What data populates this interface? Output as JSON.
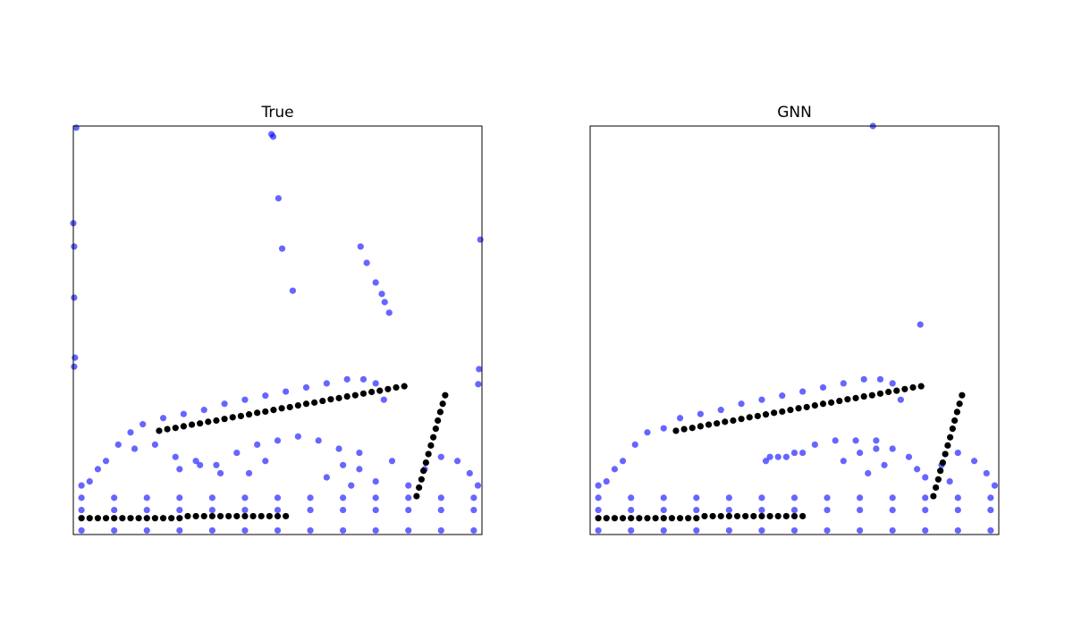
{
  "chart_data": [
    {
      "type": "scatter",
      "title": "True",
      "xlim": [
        0,
        1
      ],
      "ylim": [
        0,
        1
      ],
      "series": [
        {
          "color": "#0000ff",
          "x": [
            0.007,
            0.485,
            0.489,
            0.502,
            0.511,
            0.537,
            0.703,
            0.718,
            0.74,
            0.755,
            0.762,
            0.773,
            0,
            0.002,
            0.002,
            0.004,
            0.002,
            0.996,
            0.993,
            0.991,
            0.17,
            0.22,
            0.27,
            0.32,
            0.37,
            0.42,
            0.47,
            0.52,
            0.57,
            0.62,
            0.67,
            0.71,
            0.74,
            0.76,
            0.14,
            0.11,
            0.08,
            0.06,
            0.04,
            0.02,
            0.15,
            0.2,
            0.25,
            0.3,
            0.35,
            0.4,
            0.45,
            0.5,
            0.55,
            0.6,
            0.65,
            0.7,
            0.26,
            0.31,
            0.36,
            0.43,
            0.47,
            0.62,
            0.66,
            0.7,
            0.74,
            0.78,
            0.86,
            0.9,
            0.94,
            0.97,
            0.99,
            0.82,
            0.68,
            0.02,
            0.1,
            0.18,
            0.26,
            0.34,
            0.42,
            0.5,
            0.58,
            0.66,
            0.74,
            0.82,
            0.9,
            0.98,
            0.02,
            0.1,
            0.18,
            0.26,
            0.34,
            0.42,
            0.5,
            0.58,
            0.66,
            0.74,
            0.82,
            0.9,
            0.98,
            0.02,
            0.1,
            0.18,
            0.26,
            0.34,
            0.42,
            0.5,
            0.58,
            0.66,
            0.74,
            0.82,
            0.9,
            0.98
          ],
          "y": [
            0.996,
            0.98,
            0.974,
            0.823,
            0.7,
            0.597,
            0.705,
            0.665,
            0.617,
            0.589,
            0.569,
            0.543,
            0.762,
            0.705,
            0.58,
            0.433,
            0.411,
            0.722,
            0.405,
            0.368,
            0.27,
            0.285,
            0.295,
            0.305,
            0.32,
            0.33,
            0.34,
            0.35,
            0.36,
            0.37,
            0.38,
            0.38,
            0.37,
            0.33,
            0.25,
            0.22,
            0.18,
            0.16,
            0.13,
            0.12,
            0.21,
            0.22,
            0.19,
            0.18,
            0.17,
            0.2,
            0.22,
            0.23,
            0.24,
            0.23,
            0.21,
            0.2,
            0.16,
            0.17,
            0.15,
            0.15,
            0.18,
            0.14,
            0.17,
            0.16,
            0.13,
            0.18,
            0.16,
            0.19,
            0.18,
            0.15,
            0.12,
            0.12,
            0.12,
            0.01,
            0.01,
            0.01,
            0.01,
            0.01,
            0.01,
            0.01,
            0.01,
            0.01,
            0.01,
            0.01,
            0.01,
            0.01,
            0.06,
            0.06,
            0.06,
            0.06,
            0.06,
            0.06,
            0.06,
            0.06,
            0.06,
            0.06,
            0.06,
            0.06,
            0.06,
            0.09,
            0.09,
            0.09,
            0.09,
            0.09,
            0.09,
            0.09,
            0.09,
            0.09,
            0.09,
            0.09,
            0.09,
            0.09
          ]
        },
        {
          "color": "#000000",
          "x": [
            0.02,
            0.04,
            0.06,
            0.08,
            0.1,
            0.12,
            0.14,
            0.16,
            0.18,
            0.2,
            0.22,
            0.24,
            0.26,
            0.28,
            0.3,
            0.32,
            0.34,
            0.36,
            0.38,
            0.4,
            0.42,
            0.44,
            0.46,
            0.48,
            0.5,
            0.52,
            0.21,
            0.23,
            0.25,
            0.27,
            0.29,
            0.31,
            0.33,
            0.35,
            0.37,
            0.39,
            0.41,
            0.43,
            0.45,
            0.47,
            0.49,
            0.51,
            0.53,
            0.55,
            0.57,
            0.59,
            0.61,
            0.63,
            0.65,
            0.67,
            0.69,
            0.71,
            0.73,
            0.75,
            0.77,
            0.79,
            0.81,
            0.84,
            0.846,
            0.852,
            0.857,
            0.863,
            0.869,
            0.875,
            0.881,
            0.887,
            0.892,
            0.898,
            0.904,
            0.91
          ],
          "y": [
            0.04,
            0.04,
            0.04,
            0.04,
            0.04,
            0.04,
            0.04,
            0.04,
            0.04,
            0.04,
            0.04,
            0.04,
            0.04,
            0.045,
            0.045,
            0.045,
            0.045,
            0.045,
            0.045,
            0.045,
            0.045,
            0.045,
            0.045,
            0.045,
            0.045,
            0.045,
            0.254,
            0.258,
            0.261,
            0.265,
            0.269,
            0.272,
            0.276,
            0.279,
            0.283,
            0.287,
            0.29,
            0.294,
            0.298,
            0.301,
            0.305,
            0.309,
            0.312,
            0.316,
            0.32,
            0.323,
            0.327,
            0.331,
            0.334,
            0.338,
            0.341,
            0.345,
            0.349,
            0.352,
            0.356,
            0.36,
            0.363,
            0.094,
            0.115,
            0.135,
            0.156,
            0.176,
            0.197,
            0.218,
            0.238,
            0.259,
            0.279,
            0.3,
            0.32,
            0.341
          ]
        }
      ]
    },
    {
      "type": "scatter",
      "title": "GNN",
      "xlim": [
        0,
        1
      ],
      "ylim": [
        0,
        1
      ],
      "series": [
        {
          "color": "#0000ff",
          "x": [
            0.692,
            0.808,
            0.18,
            0.22,
            0.27,
            0.32,
            0.37,
            0.42,
            0.47,
            0.52,
            0.57,
            0.62,
            0.67,
            0.71,
            0.74,
            0.76,
            0.14,
            0.11,
            0.08,
            0.06,
            0.04,
            0.02,
            0.43,
            0.46,
            0.5,
            0.55,
            0.6,
            0.65,
            0.7,
            0.44,
            0.48,
            0.52,
            0.62,
            0.66,
            0.7,
            0.74,
            0.78,
            0.86,
            0.9,
            0.94,
            0.97,
            0.99,
            0.82,
            0.68,
            0.72,
            0.8,
            0.88,
            0.02,
            0.1,
            0.18,
            0.26,
            0.34,
            0.42,
            0.5,
            0.58,
            0.66,
            0.74,
            0.82,
            0.9,
            0.98,
            0.02,
            0.1,
            0.18,
            0.26,
            0.34,
            0.42,
            0.5,
            0.58,
            0.66,
            0.74,
            0.82,
            0.9,
            0.98,
            0.02,
            0.1,
            0.18,
            0.26,
            0.34,
            0.42,
            0.5,
            0.58,
            0.66,
            0.74,
            0.82,
            0.9,
            0.98
          ],
          "y": [
            1.0,
            0.514,
            0.26,
            0.285,
            0.295,
            0.305,
            0.32,
            0.33,
            0.34,
            0.35,
            0.36,
            0.37,
            0.38,
            0.38,
            0.37,
            0.33,
            0.25,
            0.22,
            0.18,
            0.16,
            0.13,
            0.12,
            0.18,
            0.19,
            0.2,
            0.22,
            0.23,
            0.23,
            0.21,
            0.19,
            0.19,
            0.2,
            0.18,
            0.2,
            0.23,
            0.21,
            0.19,
            0.17,
            0.2,
            0.18,
            0.15,
            0.12,
            0.14,
            0.15,
            0.17,
            0.16,
            0.13,
            0.01,
            0.01,
            0.01,
            0.01,
            0.01,
            0.01,
            0.01,
            0.01,
            0.01,
            0.01,
            0.01,
            0.01,
            0.01,
            0.06,
            0.06,
            0.06,
            0.06,
            0.06,
            0.06,
            0.06,
            0.06,
            0.06,
            0.06,
            0.06,
            0.06,
            0.06,
            0.09,
            0.09,
            0.09,
            0.09,
            0.09,
            0.09,
            0.09,
            0.09,
            0.09,
            0.09,
            0.09,
            0.09,
            0.09
          ]
        },
        {
          "color": "#000000",
          "x": [
            0.02,
            0.04,
            0.06,
            0.08,
            0.1,
            0.12,
            0.14,
            0.16,
            0.18,
            0.2,
            0.22,
            0.24,
            0.26,
            0.28,
            0.3,
            0.32,
            0.34,
            0.36,
            0.38,
            0.4,
            0.42,
            0.44,
            0.46,
            0.48,
            0.5,
            0.52,
            0.21,
            0.23,
            0.25,
            0.27,
            0.29,
            0.31,
            0.33,
            0.35,
            0.37,
            0.39,
            0.41,
            0.43,
            0.45,
            0.47,
            0.49,
            0.51,
            0.53,
            0.55,
            0.57,
            0.59,
            0.61,
            0.63,
            0.65,
            0.67,
            0.69,
            0.71,
            0.73,
            0.75,
            0.77,
            0.79,
            0.81,
            0.84,
            0.846,
            0.852,
            0.857,
            0.863,
            0.869,
            0.875,
            0.881,
            0.887,
            0.892,
            0.898,
            0.904,
            0.91
          ],
          "y": [
            0.04,
            0.04,
            0.04,
            0.04,
            0.04,
            0.04,
            0.04,
            0.04,
            0.04,
            0.04,
            0.04,
            0.04,
            0.04,
            0.045,
            0.045,
            0.045,
            0.045,
            0.045,
            0.045,
            0.045,
            0.045,
            0.045,
            0.045,
            0.045,
            0.045,
            0.045,
            0.254,
            0.258,
            0.261,
            0.265,
            0.269,
            0.272,
            0.276,
            0.279,
            0.283,
            0.287,
            0.29,
            0.294,
            0.298,
            0.301,
            0.305,
            0.309,
            0.312,
            0.316,
            0.32,
            0.323,
            0.327,
            0.331,
            0.334,
            0.338,
            0.341,
            0.345,
            0.349,
            0.352,
            0.356,
            0.36,
            0.363,
            0.094,
            0.115,
            0.135,
            0.156,
            0.176,
            0.197,
            0.218,
            0.238,
            0.259,
            0.279,
            0.3,
            0.32,
            0.341
          ]
        }
      ]
    }
  ]
}
